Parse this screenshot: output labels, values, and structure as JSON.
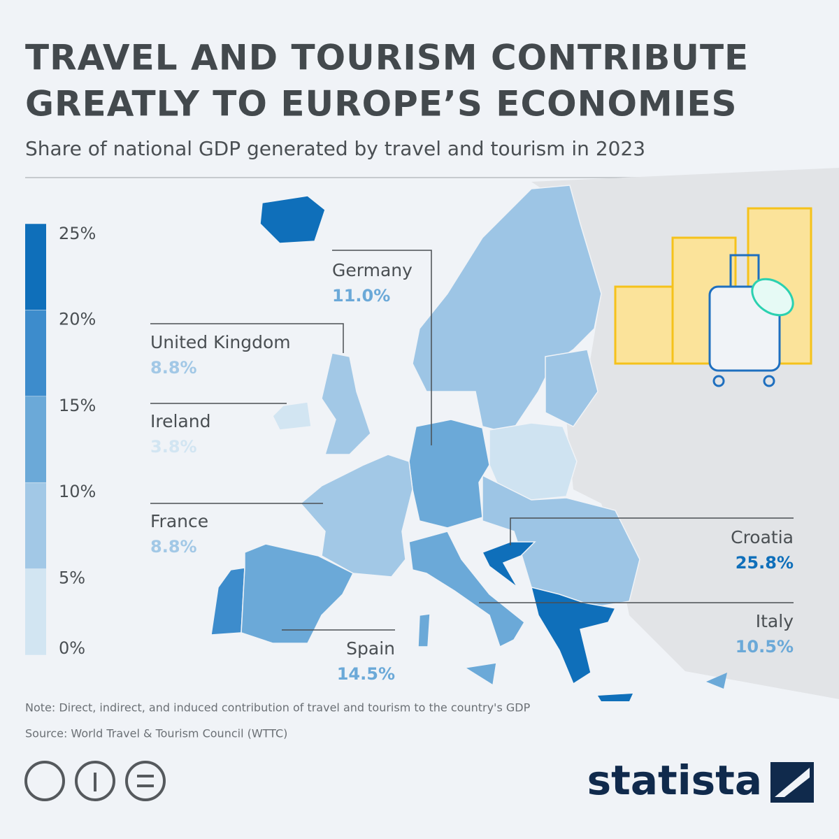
{
  "title": [
    "TRAVEL AND TOURISM CONTRIBUTE",
    "GREATLY TO EUROPE’S ECONOMIES"
  ],
  "subtitle": "Share of national GDP generated by travel and tourism in 2023",
  "legend": {
    "ticks": [
      {
        "value": 0,
        "label": "0%"
      },
      {
        "value": 5,
        "label": "5%"
      },
      {
        "value": 10,
        "label": "10%"
      },
      {
        "value": 15,
        "label": "15%"
      },
      {
        "value": 20,
        "label": "20%"
      },
      {
        "value": 25,
        "label": "25%"
      }
    ],
    "colors": [
      "#d2e5f2",
      "#a2c8e6",
      "#6ba9d8",
      "#3d8ccc",
      "#0f6fba"
    ]
  },
  "callouts": {
    "countries": [
      "Germany",
      "United Kingdom",
      "Ireland",
      "France",
      "Spain",
      "Croatia",
      "Italy"
    ],
    "values": [
      11.0,
      8.8,
      3.8,
      8.8,
      14.5,
      25.8,
      10.5
    ],
    "value_labels": [
      "11.0%",
      "8.8%",
      "3.8%",
      "8.8%",
      "14.5%",
      "25.8%",
      "10.5%"
    ]
  },
  "note": "Note: Direct, indirect, and induced contribution of travel and tourism to the country's GDP",
  "source": "Source: World Travel & Tourism Council (WTTC)",
  "brand": "statista"
}
